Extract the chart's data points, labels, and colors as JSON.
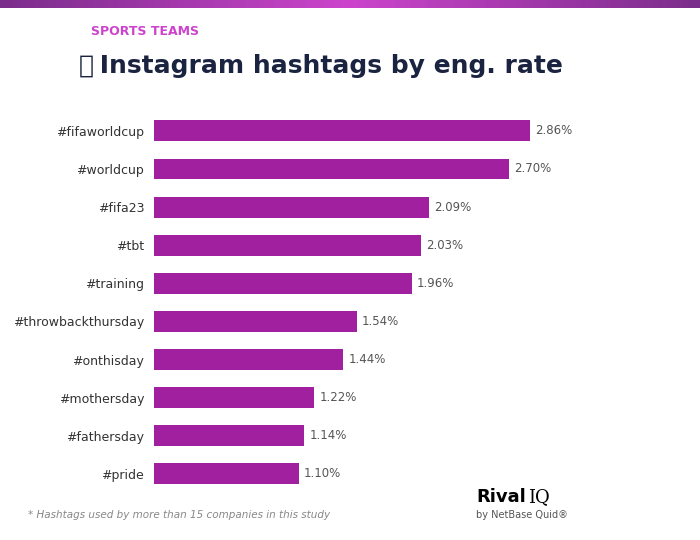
{
  "categories": [
    "#fifaworldcup",
    "#worldcup",
    "#fifa23",
    "#tbt",
    "#training",
    "#throwbackthursday",
    "#onthisday",
    "#mothersday",
    "#fathersday",
    "#pride"
  ],
  "values": [
    2.86,
    2.7,
    2.09,
    2.03,
    1.96,
    1.54,
    1.44,
    1.22,
    1.14,
    1.1
  ],
  "labels": [
    "2.86%",
    "2.70%",
    "2.09%",
    "2.03%",
    "1.96%",
    "1.54%",
    "1.44%",
    "1.22%",
    "1.14%",
    "1.10%"
  ],
  "bar_color": "#a020a0",
  "background_color": "#ffffff",
  "top_bar_color": "#7b2d8b",
  "subtitle": "SPORTS TEAMS",
  "subtitle_color": "#cc44cc",
  "title": " Instagram hashtags by eng. rate",
  "title_color": "#1a2340",
  "footer_note": "* Hashtags used by more than 15 companies in this study",
  "footer_color": "#888888",
  "label_color": "#555555",
  "xlim": [
    0,
    3.3
  ],
  "bar_height": 0.55,
  "top_stripe_color": "#7b2d8b"
}
